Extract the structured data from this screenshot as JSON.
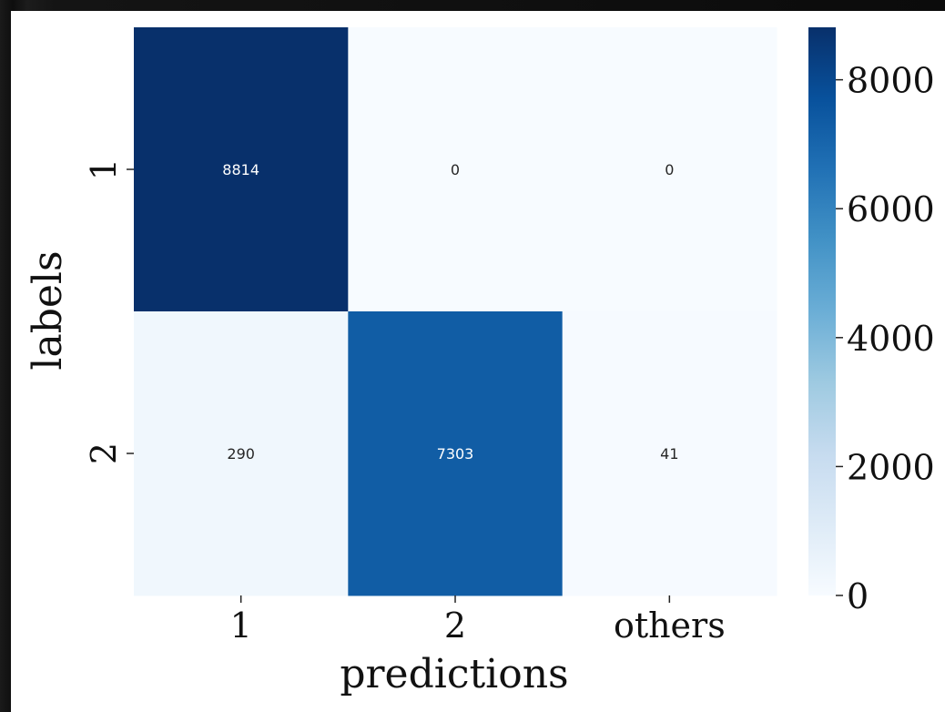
{
  "chart_data": {
    "type": "heatmap",
    "x_categories": [
      "1",
      "2",
      "others"
    ],
    "y_categories": [
      "1",
      "2"
    ],
    "values": [
      [
        8814,
        0,
        0
      ],
      [
        290,
        7303,
        41
      ]
    ],
    "xlabel": "predictions",
    "ylabel": "labels",
    "colorbar": {
      "range": [
        0,
        8814
      ],
      "ticks": [
        0,
        2000,
        4000,
        6000,
        8000
      ],
      "colormap": "Blues"
    },
    "colors": {
      "low": "#f7fbff",
      "high": "#08306b"
    }
  }
}
